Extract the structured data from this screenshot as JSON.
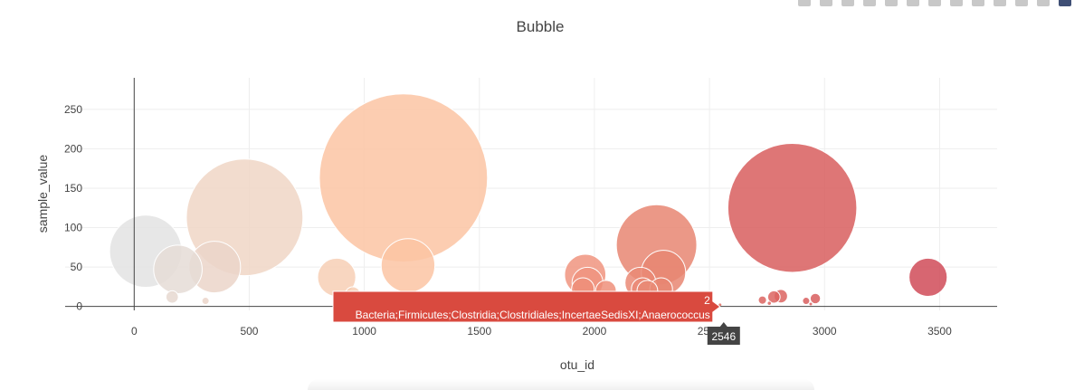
{
  "modebar": {
    "icons": [
      "camera-icon",
      "zoom-icon",
      "pan-icon",
      "box-select-icon",
      "lasso-icon",
      "zoom-in-icon",
      "zoom-out-icon",
      "autoscale-icon",
      "reset-axes-icon",
      "spike-lines-icon",
      "hover-closest-icon",
      "hover-compare-icon",
      "plotly-logo-icon"
    ]
  },
  "chart_data": {
    "type": "scatter",
    "subtype": "bubble",
    "title": "Bubble",
    "xlabel": "otu_id",
    "ylabel": "sample_value",
    "xlim": [
      -300,
      3750
    ],
    "ylim": [
      -5,
      290
    ],
    "xticks": [
      0,
      500,
      1000,
      1500,
      2000,
      2500,
      3000,
      3500
    ],
    "xtick_labels": [
      "0",
      "500",
      "1000",
      "1500",
      "2000",
      "2500",
      "3000",
      "3500"
    ],
    "yticks": [
      0,
      50,
      100,
      150,
      200,
      250
    ],
    "ytick_labels": [
      "0",
      "50",
      "100",
      "150",
      "200",
      "250"
    ],
    "grid": true,
    "legend": "none",
    "colorscale": "earth",
    "colors": {
      "grid": "#eeeeee",
      "axis_line": "#444444",
      "hover_bg": "#d94a3f",
      "hover_x_bg": "#444444"
    },
    "points": [
      {
        "x": 50,
        "y": 70,
        "size": 70,
        "color": "#e3e3e3"
      },
      {
        "x": 190,
        "y": 47,
        "size": 47,
        "color": "#e5dcd6"
      },
      {
        "x": 350,
        "y": 50,
        "size": 50,
        "color": "#ebd5c9"
      },
      {
        "x": 165,
        "y": 12,
        "size": 12,
        "color": "#e6d8d0"
      },
      {
        "x": 310,
        "y": 7,
        "size": 7,
        "color": "#ebd5c9"
      },
      {
        "x": 480,
        "y": 113,
        "size": 113,
        "color": "#f0d6c6"
      },
      {
        "x": 880,
        "y": 37,
        "size": 37,
        "color": "#f7cfb5"
      },
      {
        "x": 950,
        "y": 15,
        "size": 15,
        "color": "#f7cfb5"
      },
      {
        "x": 1170,
        "y": 163,
        "size": 163,
        "color": "#fbc4a3"
      },
      {
        "x": 1190,
        "y": 52,
        "size": 52,
        "color": "#fbc4a3"
      },
      {
        "x": 1960,
        "y": 40,
        "size": 40,
        "color": "#f0947f"
      },
      {
        "x": 1970,
        "y": 30,
        "size": 30,
        "color": "#f0947f"
      },
      {
        "x": 1950,
        "y": 22,
        "size": 22,
        "color": "#ee8f7a"
      },
      {
        "x": 2050,
        "y": 20,
        "size": 20,
        "color": "#ee8f7a"
      },
      {
        "x": 2200,
        "y": 30,
        "size": 30,
        "color": "#ea8a76"
      },
      {
        "x": 2210,
        "y": 22,
        "size": 22,
        "color": "#ea8a76"
      },
      {
        "x": 2230,
        "y": 20,
        "size": 20,
        "color": "#e98975"
      },
      {
        "x": 2270,
        "y": 78,
        "size": 78,
        "color": "#e88672"
      },
      {
        "x": 2300,
        "y": 43,
        "size": 43,
        "color": "#e88672"
      },
      {
        "x": 2290,
        "y": 22,
        "size": 22,
        "color": "#e88672"
      },
      {
        "x": 2546,
        "y": 2,
        "size": 2,
        "color": "#df6e61"
      },
      {
        "x": 2730,
        "y": 8,
        "size": 8,
        "color": "#dc6460"
      },
      {
        "x": 2780,
        "y": 12,
        "size": 12,
        "color": "#dc6460"
      },
      {
        "x": 2810,
        "y": 13,
        "size": 13,
        "color": "#dc6460"
      },
      {
        "x": 2760,
        "y": 4,
        "size": 4,
        "color": "#dc6460"
      },
      {
        "x": 2860,
        "y": 125,
        "size": 125,
        "color": "#d85e5e"
      },
      {
        "x": 2920,
        "y": 7,
        "size": 7,
        "color": "#d85e5e"
      },
      {
        "x": 2960,
        "y": 10,
        "size": 10,
        "color": "#d85e5e"
      },
      {
        "x": 2940,
        "y": 3,
        "size": 3,
        "color": "#d85e5e"
      },
      {
        "x": 3450,
        "y": 37,
        "size": 37,
        "color": "#d04b58"
      }
    ],
    "hover": {
      "x": 2546,
      "y": 2,
      "value_label": "2",
      "text": "Bacteria;Firmicutes;Clostridia;Clostridiales;IncertaeSedisXI;Anaerococcus",
      "x_label": "2546"
    }
  }
}
